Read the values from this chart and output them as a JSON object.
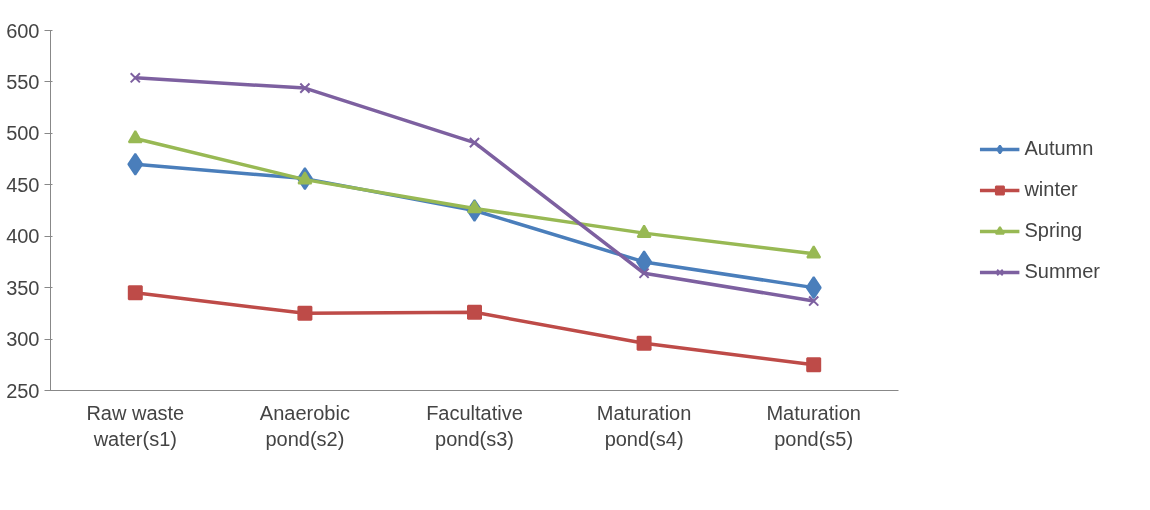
{
  "chart_data": {
    "type": "line",
    "categories": [
      "Raw waste water(s1)",
      "Anaerobic pond(s2)",
      "Facultative pond(s3)",
      "Maturation pond(s4)",
      "Maturation pond(s5)"
    ],
    "series": [
      {
        "name": "Autumn",
        "color": "#4a7ebb",
        "marker": "diamond",
        "values": [
          470,
          456,
          425,
          375,
          350
        ]
      },
      {
        "name": "winter",
        "color": "#be4b48",
        "marker": "square",
        "values": [
          345,
          325,
          326,
          296,
          275
        ]
      },
      {
        "name": "Spring",
        "color": "#98b954",
        "marker": "triangle",
        "values": [
          495,
          455,
          427,
          403,
          383
        ]
      },
      {
        "name": "Summer",
        "color": "#7d60a0",
        "marker": "cross",
        "values": [
          554,
          544,
          491,
          364,
          337
        ]
      }
    ],
    "ylim": [
      250,
      600
    ],
    "yticks": [
      250,
      300,
      350,
      400,
      450,
      500,
      550,
      600
    ],
    "grid": false,
    "legend": "right",
    "line_style": "solid"
  }
}
